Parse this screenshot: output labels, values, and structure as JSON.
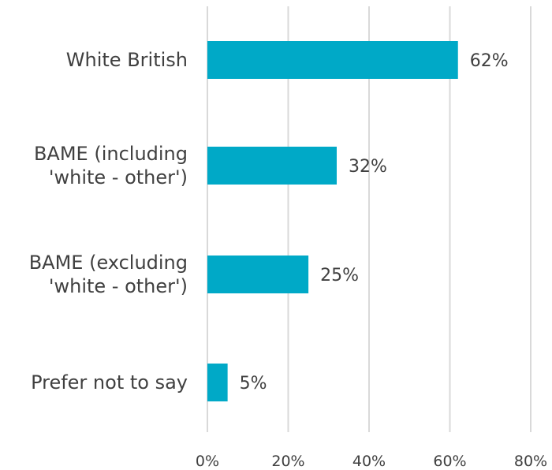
{
  "chart_data": {
    "type": "bar",
    "orientation": "horizontal",
    "title": "",
    "xlabel": "",
    "ylabel": "",
    "categories": [
      [
        "White British"
      ],
      [
        "BAME (including",
        "'white - other')"
      ],
      [
        "BAME (excluding",
        "'white - other')"
      ],
      [
        "Prefer not to say"
      ]
    ],
    "values": [
      62,
      32,
      25,
      5
    ],
    "data_labels": [
      "62%",
      "32%",
      "25%",
      "5%"
    ],
    "xlim": [
      0,
      80
    ],
    "xticks": [
      0,
      20,
      40,
      60,
      80
    ],
    "xtick_labels": [
      "0%",
      "20%",
      "40%",
      "60%",
      "80%"
    ],
    "grid": "vertical",
    "legend": "none",
    "colors": {
      "bar": "#00A9C7",
      "grid": "#D9D9D9",
      "text": "#404040"
    }
  }
}
